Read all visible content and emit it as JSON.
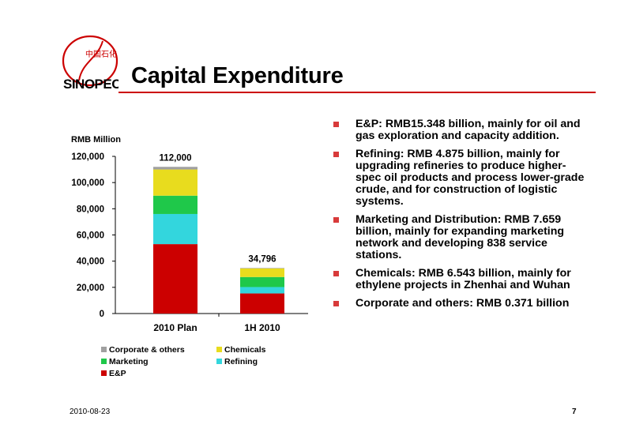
{
  "header": {
    "logo_text": "SINOPEC",
    "logo_cn": "中国石化",
    "title": "Capital Expenditure"
  },
  "bullets": [
    "E&P: RMB15.348 billion, mainly for oil and gas exploration and capacity addition.",
    "Refining: RMB 4.875 billion, mainly for upgrading refineries to produce higher-spec oil products and process lower-grade crude, and for construction of logistic systems.",
    "Marketing and Distribution: RMB 7.659 billion, mainly for expanding marketing network and developing 838 service stations.",
    "Chemicals: RMB 6.543 billion,  mainly for ethylene projects in Zhenhai and Wuhan",
    "Corporate and others: RMB 0.371 billion"
  ],
  "chart_data": {
    "type": "bar",
    "stacked": true,
    "ylabel": "RMB Million",
    "ylim": [
      0,
      120000
    ],
    "yticks": [
      0,
      20000,
      40000,
      60000,
      80000,
      100000,
      120000
    ],
    "ytick_labels": [
      "0",
      "20,000",
      "40,000",
      "60,000",
      "80,000",
      "100,000",
      "120,000"
    ],
    "categories": [
      "2010 Plan",
      "1H 2010"
    ],
    "totals_labels": [
      "112,000",
      "34,796"
    ],
    "series": [
      {
        "name": "E&P",
        "color": "#cc0000",
        "values": [
          53000,
          15348
        ]
      },
      {
        "name": "Refining",
        "color": "#33d6dd",
        "values": [
          23000,
          4875
        ]
      },
      {
        "name": "Marketing",
        "color": "#1fc84a",
        "values": [
          14000,
          7659
        ]
      },
      {
        "name": "Chemicals",
        "color": "#e8dc1e",
        "values": [
          20000,
          6543
        ]
      },
      {
        "name": "Corporate & others",
        "color": "#a0a0a0",
        "values": [
          2000,
          371
        ]
      }
    ],
    "legend_order": [
      "Corporate & others",
      "Chemicals",
      "Marketing",
      "Refining",
      "E&P"
    ],
    "legend_placement": "bottom",
    "grid": false
  },
  "footer": {
    "date": "2010-08-23",
    "page": "7"
  }
}
